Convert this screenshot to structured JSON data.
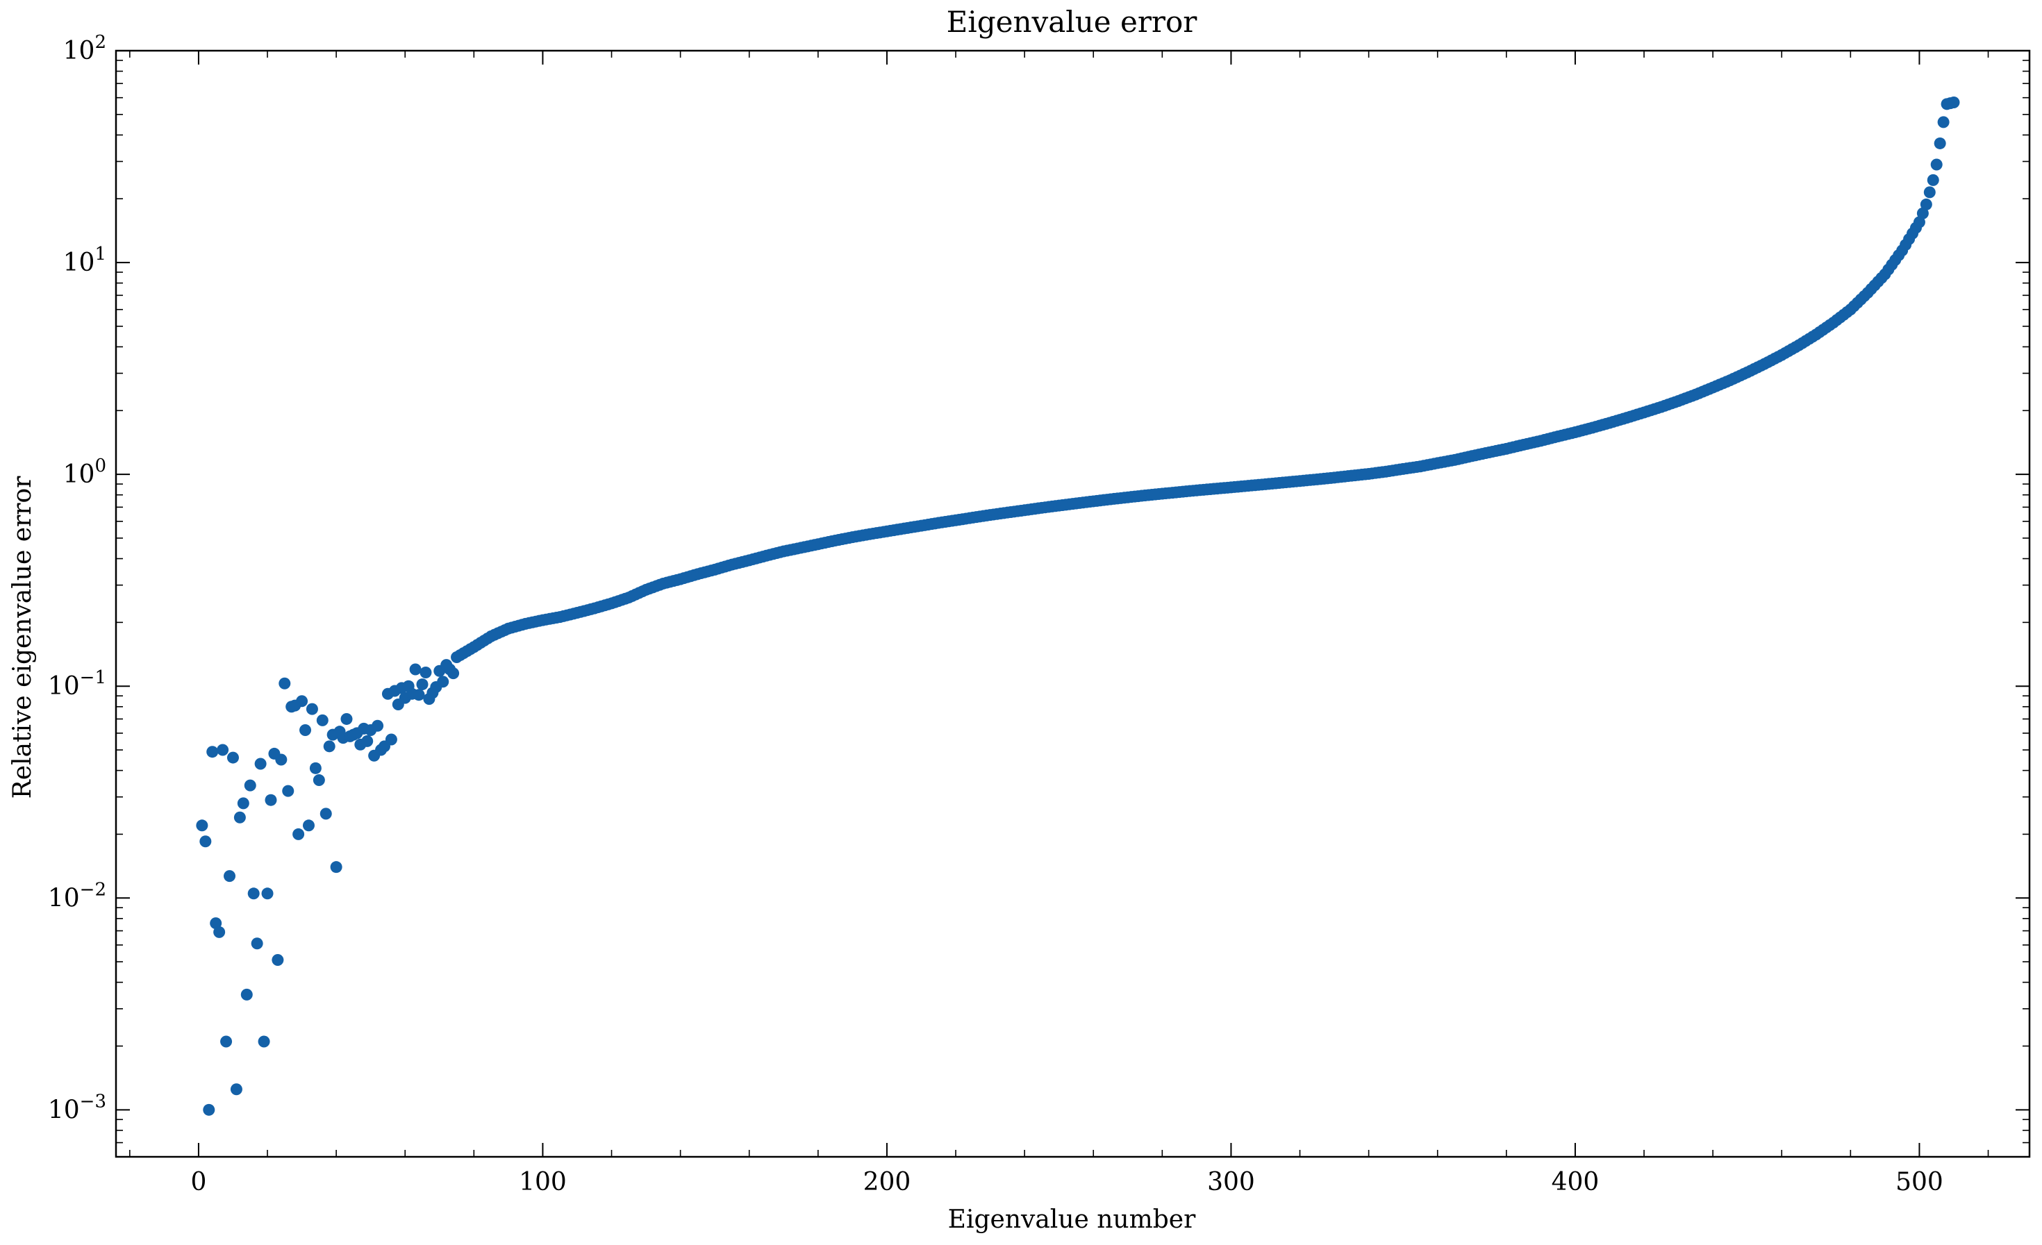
{
  "chart_data": {
    "type": "scatter",
    "title": "Eigenvalue error",
    "xlabel": "Eigenvalue number",
    "ylabel": "Relative eigenvalue error",
    "xlim": [
      -24,
      532
    ],
    "ylim": [
      0.0006,
      100
    ],
    "yscale": "log",
    "x_ticks": [
      {
        "value": 0,
        "label": "0"
      },
      {
        "value": 100,
        "label": "100"
      },
      {
        "value": 200,
        "label": "200"
      },
      {
        "value": 300,
        "label": "300"
      },
      {
        "value": 400,
        "label": "400"
      },
      {
        "value": 500,
        "label": "500"
      }
    ],
    "y_ticks": [
      {
        "value": 0.001,
        "base": "10",
        "exp": "−3"
      },
      {
        "value": 0.01,
        "base": "10",
        "exp": "−2"
      },
      {
        "value": 0.1,
        "base": "10",
        "exp": "−1"
      },
      {
        "value": 1,
        "base": "10",
        "exp": "0"
      },
      {
        "value": 10,
        "base": "10",
        "exp": "1"
      },
      {
        "value": 100,
        "base": "10",
        "exp": "2"
      }
    ],
    "grid": false,
    "legend": "none",
    "marker_color": "#1461a8",
    "scatter_points": [
      [
        1,
        0.022
      ],
      [
        2,
        0.0185
      ],
      [
        3,
        0.001
      ],
      [
        4,
        0.049
      ],
      [
        5,
        0.0076
      ],
      [
        6,
        0.0069
      ],
      [
        7,
        0.05
      ],
      [
        8,
        0.0021
      ],
      [
        9,
        0.0127
      ],
      [
        10,
        0.046
      ],
      [
        11,
        0.00125
      ],
      [
        12,
        0.024
      ],
      [
        13,
        0.028
      ],
      [
        14,
        0.0035
      ],
      [
        15,
        0.034
      ],
      [
        16,
        0.0105
      ],
      [
        17,
        0.0061
      ],
      [
        18,
        0.043
      ],
      [
        19,
        0.0021
      ],
      [
        20,
        0.0105
      ],
      [
        21,
        0.029
      ],
      [
        22,
        0.048
      ],
      [
        23,
        0.0051
      ],
      [
        24,
        0.045
      ],
      [
        25,
        0.103
      ],
      [
        26,
        0.032
      ],
      [
        27,
        0.08
      ],
      [
        28,
        0.081
      ],
      [
        29,
        0.02
      ],
      [
        30,
        0.085
      ],
      [
        31,
        0.062
      ],
      [
        32,
        0.022
      ],
      [
        33,
        0.078
      ],
      [
        34,
        0.041
      ],
      [
        35,
        0.036
      ],
      [
        36,
        0.069
      ],
      [
        37,
        0.025
      ],
      [
        38,
        0.052
      ],
      [
        39,
        0.059
      ],
      [
        40,
        0.014
      ],
      [
        41,
        0.061
      ],
      [
        42,
        0.057
      ],
      [
        43,
        0.07
      ],
      [
        44,
        0.058
      ],
      [
        45,
        0.059
      ],
      [
        46,
        0.06
      ],
      [
        47,
        0.053
      ],
      [
        48,
        0.063
      ],
      [
        49,
        0.055
      ],
      [
        50,
        0.062
      ],
      [
        51,
        0.047
      ],
      [
        52,
        0.065
      ],
      [
        53,
        0.05
      ],
      [
        54,
        0.052
      ],
      [
        55,
        0.092
      ],
      [
        56,
        0.056
      ],
      [
        57,
        0.095
      ],
      [
        58,
        0.082
      ],
      [
        59,
        0.098
      ],
      [
        60,
        0.088
      ],
      [
        61,
        0.1
      ],
      [
        62,
        0.092
      ],
      [
        63,
        0.12
      ],
      [
        64,
        0.091
      ],
      [
        65,
        0.102
      ],
      [
        66,
        0.116
      ],
      [
        67,
        0.087
      ],
      [
        68,
        0.093
      ],
      [
        69,
        0.099
      ],
      [
        70,
        0.118
      ],
      [
        71,
        0.105
      ],
      [
        72,
        0.126
      ],
      [
        73,
        0.12
      ],
      [
        74,
        0.115
      ]
    ],
    "series": [
      {
        "values": [
          [
            75,
            0.137
          ],
          [
            80,
            0.153
          ],
          [
            85,
            0.172
          ],
          [
            90,
            0.187
          ],
          [
            95,
            0.197
          ],
          [
            100,
            0.205
          ],
          [
            105,
            0.212
          ],
          [
            110,
            0.222
          ],
          [
            115,
            0.233
          ],
          [
            120,
            0.246
          ],
          [
            125,
            0.262
          ],
          [
            130,
            0.285
          ],
          [
            135,
            0.305
          ],
          [
            140,
            0.32
          ],
          [
            145,
            0.338
          ],
          [
            150,
            0.355
          ],
          [
            155,
            0.375
          ],
          [
            160,
            0.393
          ],
          [
            165,
            0.413
          ],
          [
            170,
            0.433
          ],
          [
            175,
            0.45
          ],
          [
            180,
            0.468
          ],
          [
            185,
            0.487
          ],
          [
            190,
            0.505
          ],
          [
            195,
            0.522
          ],
          [
            200,
            0.538
          ],
          [
            205,
            0.555
          ],
          [
            210,
            0.572
          ],
          [
            215,
            0.59
          ],
          [
            220,
            0.607
          ],
          [
            225,
            0.625
          ],
          [
            230,
            0.643
          ],
          [
            235,
            0.66
          ],
          [
            240,
            0.677
          ],
          [
            245,
            0.695
          ],
          [
            250,
            0.712
          ],
          [
            255,
            0.729
          ],
          [
            260,
            0.746
          ],
          [
            265,
            0.763
          ],
          [
            270,
            0.779
          ],
          [
            275,
            0.795
          ],
          [
            280,
            0.81
          ],
          [
            285,
            0.825
          ],
          [
            290,
            0.84
          ],
          [
            295,
            0.854
          ],
          [
            300,
            0.868
          ],
          [
            305,
            0.883
          ],
          [
            310,
            0.898
          ],
          [
            315,
            0.914
          ],
          [
            320,
            0.93
          ],
          [
            325,
            0.947
          ],
          [
            330,
            0.965
          ],
          [
            335,
            0.985
          ],
          [
            340,
            1.005
          ],
          [
            345,
            1.03
          ],
          [
            350,
            1.06
          ],
          [
            355,
            1.09
          ],
          [
            360,
            1.13
          ],
          [
            365,
            1.17
          ],
          [
            370,
            1.22
          ],
          [
            375,
            1.27
          ],
          [
            380,
            1.32
          ],
          [
            385,
            1.38
          ],
          [
            390,
            1.44
          ],
          [
            395,
            1.51
          ],
          [
            400,
            1.58
          ],
          [
            405,
            1.66
          ],
          [
            410,
            1.75
          ],
          [
            415,
            1.85
          ],
          [
            420,
            1.96
          ],
          [
            425,
            2.08
          ],
          [
            430,
            2.22
          ],
          [
            435,
            2.38
          ],
          [
            440,
            2.57
          ],
          [
            445,
            2.78
          ],
          [
            450,
            3.03
          ],
          [
            455,
            3.32
          ],
          [
            460,
            3.66
          ],
          [
            465,
            4.07
          ],
          [
            470,
            4.57
          ],
          [
            475,
            5.2
          ],
          [
            480,
            6.0
          ],
          [
            485,
            7.2
          ],
          [
            490,
            8.8
          ],
          [
            495,
            11.4
          ],
          [
            500,
            15.5
          ],
          [
            502,
            18.8
          ],
          [
            504,
            24.5
          ],
          [
            505,
            29.0
          ],
          [
            507,
            46
          ],
          [
            508,
            56
          ],
          [
            510,
            57
          ]
        ]
      }
    ]
  }
}
